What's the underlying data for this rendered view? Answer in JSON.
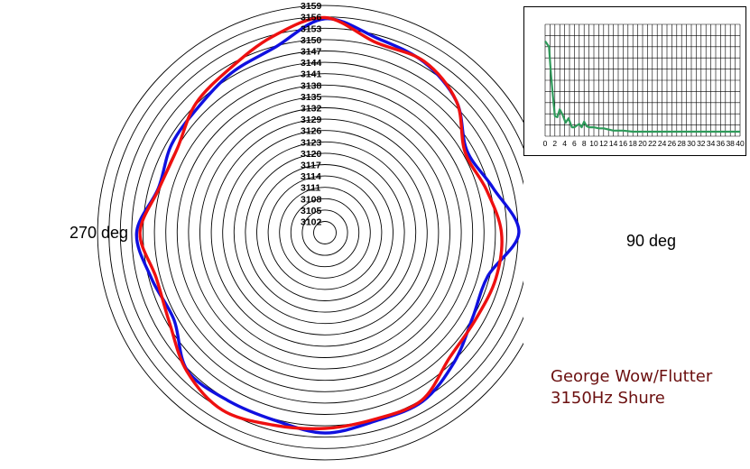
{
  "chart_data": [
    {
      "type": "polar-line",
      "rings": [
        "3102",
        "3105",
        "3108",
        "3111",
        "3114",
        "3117",
        "3120",
        "3123",
        "3126",
        "3129",
        "3132",
        "3135",
        "3138",
        "3141",
        "3144",
        "3147",
        "3150",
        "3153",
        "3156",
        "3159"
      ],
      "r_range": [
        3099,
        3159
      ],
      "angle_labels": {
        "left": "270 deg",
        "right": "90 deg"
      },
      "series": [
        {
          "color": "#1010e0",
          "angles_deg": [
            0,
            15,
            30,
            45,
            60,
            75,
            90,
            105,
            120,
            135,
            150,
            165,
            180,
            195,
            210,
            225,
            240,
            255,
            270,
            285,
            300,
            315,
            330,
            345
          ],
          "values": [
            3155.5,
            3152.2,
            3151.1,
            3148.1,
            3142.3,
            3144.9,
            3150.2,
            3143.5,
            3144.0,
            3147.3,
            3150.5,
            3150.5,
            3151.9,
            3150.3,
            3150.2,
            3150.4,
            3145.0,
            3146.3,
            3148.7,
            3144.5,
            3145.7,
            3146.1,
            3147.9,
            3149.7
          ]
        },
        {
          "color": "#ee1010",
          "angles_deg": [
            0,
            15,
            30,
            45,
            60,
            75,
            90,
            105,
            120,
            135,
            150,
            165,
            180,
            195,
            210,
            225,
            240,
            255,
            270,
            285,
            300,
            315,
            330,
            345
          ],
          "values": [
            3155.8,
            3151.0,
            3151.3,
            3148.1,
            3141.7,
            3143.1,
            3145.6,
            3145.7,
            3144.9,
            3145.6,
            3150.1,
            3150.0,
            3150.7,
            3151.6,
            3153.1,
            3150.6,
            3146.4,
            3145.1,
            3147.8,
            3144.3,
            3143.9,
            3147.2,
            3149.1,
            3152.6
          ]
        }
      ]
    },
    {
      "type": "line",
      "x_ticks": [
        "0",
        "2",
        "4",
        "6",
        "8",
        "10",
        "12",
        "14",
        "16",
        "18",
        "20",
        "22",
        "24",
        "26",
        "28",
        "30",
        "32",
        "34",
        "36",
        "38",
        "40"
      ],
      "xlim": [
        0,
        40
      ],
      "ylim": [
        0,
        1
      ],
      "grid": true,
      "series": [
        {
          "color": "#2e9a5a",
          "x": [
            0,
            0.8,
            1.2,
            1.6,
            2.0,
            2.5,
            3.0,
            3.6,
            4.2,
            4.8,
            5.5,
            6.0,
            7.0,
            7.5,
            8.0,
            8.5,
            9.0,
            10,
            11,
            12,
            13,
            14,
            15,
            16,
            18,
            20,
            22,
            25,
            30,
            35,
            40
          ],
          "y": [
            0.85,
            0.8,
            0.55,
            0.36,
            0.18,
            0.17,
            0.24,
            0.19,
            0.12,
            0.16,
            0.08,
            0.08,
            0.11,
            0.08,
            0.13,
            0.09,
            0.08,
            0.08,
            0.07,
            0.07,
            0.06,
            0.05,
            0.05,
            0.05,
            0.04,
            0.04,
            0.04,
            0.04,
            0.04,
            0.04,
            0.04
          ]
        }
      ]
    }
  ],
  "caption": {
    "line1": "George Wow/Flutter",
    "line2": "3150Hz Shure"
  }
}
